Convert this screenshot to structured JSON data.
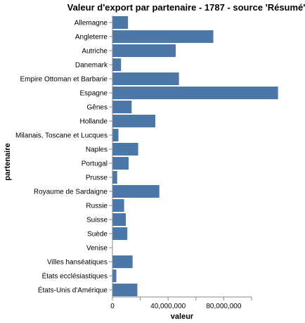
{
  "chart_data": {
    "type": "bar",
    "orientation": "horizontal",
    "title": "Valeur d'export par partenaire - 1787 - source 'Résumé'",
    "xlabel": "valeur",
    "ylabel": "partenaire",
    "xlim": [
      0,
      100000000
    ],
    "x_ticks": [
      0,
      40000000,
      80000000
    ],
    "x_tick_labels": [
      "0",
      "40,000,000",
      "80,000,000"
    ],
    "grid": false,
    "bar_color": "#4c78a8",
    "categories": [
      "Allemagne",
      "Angleterre",
      "Autriche",
      "Danemark",
      "Empire Ottoman et Barbarie",
      "Espagne",
      "Gênes",
      "Hollande",
      "Milanais, Toscane et Lucques",
      "Naples",
      "Portugal",
      "Prusse",
      "Royaume de Sardaigne",
      "Russie",
      "Suisse",
      "Suède",
      "Venise",
      "Villes hanséatiques",
      "États ecclésiastiques",
      "États-Unis d'Amérique"
    ],
    "values": [
      11200000,
      72500000,
      45500000,
      6200000,
      47800000,
      119000000,
      13800000,
      30800000,
      4300000,
      18500000,
      11600000,
      3400000,
      33700000,
      8400000,
      9600000,
      10700000,
      0,
      14500000,
      2800000,
      17900000
    ]
  }
}
